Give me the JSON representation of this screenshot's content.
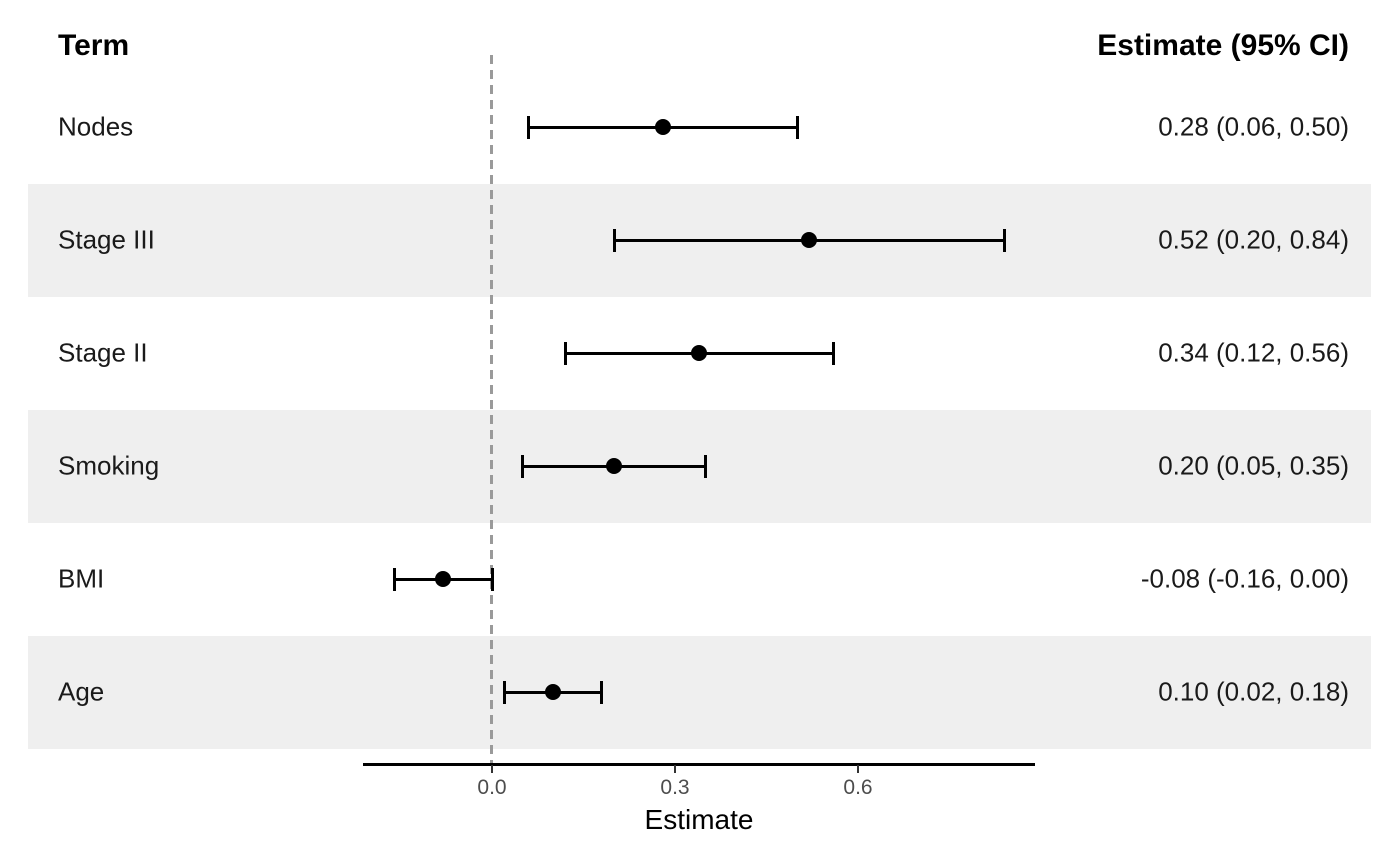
{
  "header": {
    "term_label": "Term",
    "estimate_label": "Estimate (95% CI)"
  },
  "axis": {
    "title": "Estimate",
    "tick_labels": [
      "0.0",
      "0.3",
      "0.6"
    ],
    "tick_values": [
      0.0,
      0.3,
      0.6
    ],
    "range": [
      -0.21,
      0.89
    ],
    "zero_reference_line": 0.0
  },
  "chart_data": {
    "type": "scatter",
    "variant": "forest_plot",
    "title": "",
    "xlabel": "Estimate",
    "ylabel": "",
    "xlim": [
      -0.21,
      0.89
    ],
    "grid": false,
    "legend": "none",
    "rows": [
      {
        "term": "Nodes",
        "estimate": 0.28,
        "ci_low": 0.06,
        "ci_high": 0.5,
        "label": "0.28 (0.06, 0.50)",
        "striped": false
      },
      {
        "term": "Stage III",
        "estimate": 0.52,
        "ci_low": 0.2,
        "ci_high": 0.84,
        "label": "0.52 (0.20, 0.84)",
        "striped": true
      },
      {
        "term": "Stage II",
        "estimate": 0.34,
        "ci_low": 0.12,
        "ci_high": 0.56,
        "label": "0.34 (0.12, 0.56)",
        "striped": false
      },
      {
        "term": "Smoking",
        "estimate": 0.2,
        "ci_low": 0.05,
        "ci_high": 0.35,
        "label": "0.20 (0.05, 0.35)",
        "striped": true
      },
      {
        "term": "BMI",
        "estimate": -0.08,
        "ci_low": -0.16,
        "ci_high": 0.0,
        "label": "-0.08 (-0.16, 0.00)",
        "striped": false
      },
      {
        "term": "Age",
        "estimate": 0.1,
        "ci_low": 0.02,
        "ci_high": 0.18,
        "label": "0.10 (0.02, 0.18)",
        "striped": true
      }
    ]
  },
  "colors": {
    "stripe": "#EFEFEF",
    "zero_line": "#9A9A9A",
    "marker": "#000000",
    "axis_text": "#4D4D4D",
    "text": "#1A1A1A",
    "background": "#FFFFFF"
  }
}
